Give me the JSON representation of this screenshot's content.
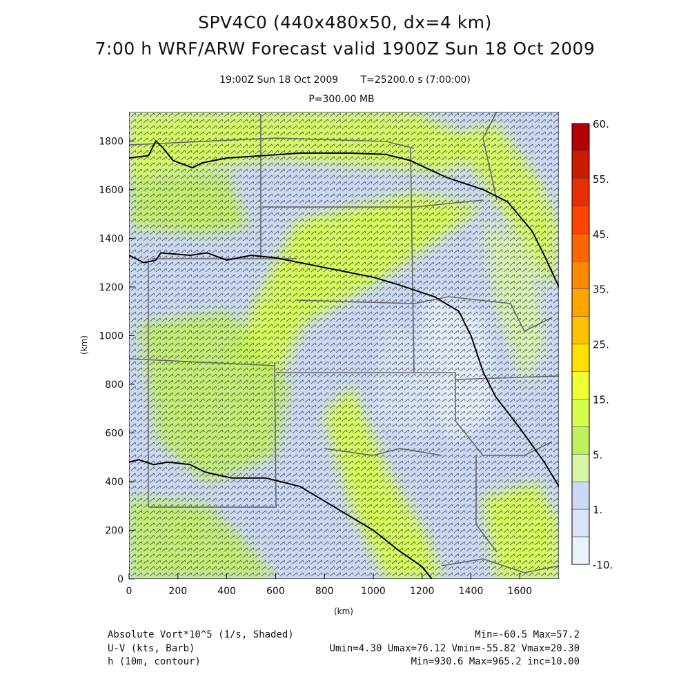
{
  "header": {
    "title_line1": "SPV4C0 (440x480x50, dx=4 km)",
    "title_line2": "7:00 h WRF/ARW Forecast valid 1900Z Sun 18 Oct 2009",
    "valid_time": "19:00Z Sun 18 Oct 2009",
    "model_time": "T=25200.0 s (7:00:00)",
    "level": "P=300.00 MB"
  },
  "chart_data": {
    "type": "heatmap",
    "xlabel": "(km)",
    "ylabel": "(km)",
    "xlim": [
      0,
      1760
    ],
    "ylim": [
      0,
      1920
    ],
    "x_ticks": [
      "0",
      "200",
      "400",
      "600",
      "800",
      "1000",
      "1200",
      "1400",
      "1600"
    ],
    "y_ticks": [
      "0",
      "200",
      "400",
      "600",
      "800",
      "1000",
      "1200",
      "1400",
      "1600",
      "1800"
    ],
    "colorbar": {
      "levels": [
        "60.",
        "55.",
        "45.",
        "35.",
        "25.",
        "15.",
        "5.",
        "1.",
        "-10."
      ],
      "colors": [
        "#b30000",
        "#cc1a00",
        "#e62e00",
        "#ff4400",
        "#ff6600",
        "#ff8800",
        "#ffa500",
        "#ffc200",
        "#ffe000",
        "#f0ff33",
        "#d6ff4d",
        "#c0f060",
        "#d8f5a8",
        "#ccd9f5",
        "#d9e5f7",
        "#eaf3fb"
      ]
    },
    "fields": [
      {
        "name": "Absolute Vort*10^5 (1/s, Shaded)",
        "stats": "Min=-60.5 Max=57.2"
      },
      {
        "name": "U-V (kts, Barb)",
        "stats": "Umin=4.30 Umax=76.12 Vmin=-55.82 Vmax=20.30"
      },
      {
        "name": "h (10m, contour)",
        "stats": "Min=930.6 Max=965.2 inc=10.00"
      }
    ],
    "contours": [
      {
        "level": 960,
        "points": [
          [
            0,
            1730
          ],
          [
            80,
            1740
          ],
          [
            110,
            1800
          ],
          [
            140,
            1770
          ],
          [
            180,
            1720
          ],
          [
            260,
            1690
          ],
          [
            300,
            1710
          ],
          [
            400,
            1730
          ],
          [
            550,
            1740
          ],
          [
            700,
            1750
          ],
          [
            900,
            1750
          ],
          [
            1050,
            1745
          ],
          [
            1150,
            1720
          ],
          [
            1300,
            1650
          ],
          [
            1450,
            1600
          ],
          [
            1550,
            1550
          ],
          [
            1650,
            1430
          ],
          [
            1700,
            1330
          ],
          [
            1760,
            1200
          ]
        ]
      },
      {
        "level": 950,
        "points": [
          [
            0,
            1330
          ],
          [
            60,
            1300
          ],
          [
            110,
            1310
          ],
          [
            130,
            1340
          ],
          [
            250,
            1330
          ],
          [
            320,
            1340
          ],
          [
            400,
            1310
          ],
          [
            500,
            1330
          ],
          [
            600,
            1320
          ],
          [
            800,
            1280
          ],
          [
            1000,
            1240
          ],
          [
            1100,
            1210
          ],
          [
            1250,
            1160
          ],
          [
            1350,
            1100
          ],
          [
            1400,
            1000
          ],
          [
            1450,
            850
          ],
          [
            1500,
            750
          ],
          [
            1600,
            620
          ],
          [
            1700,
            480
          ],
          [
            1760,
            380
          ]
        ]
      },
      {
        "level": 940,
        "points": [
          [
            0,
            480
          ],
          [
            40,
            490
          ],
          [
            100,
            470
          ],
          [
            160,
            480
          ],
          [
            250,
            470
          ],
          [
            310,
            440
          ],
          [
            350,
            430
          ],
          [
            420,
            415
          ],
          [
            560,
            415
          ],
          [
            700,
            380
          ],
          [
            800,
            320
          ],
          [
            1000,
            200
          ],
          [
            1100,
            120
          ],
          [
            1200,
            50
          ],
          [
            1240,
            0
          ]
        ]
      }
    ]
  }
}
